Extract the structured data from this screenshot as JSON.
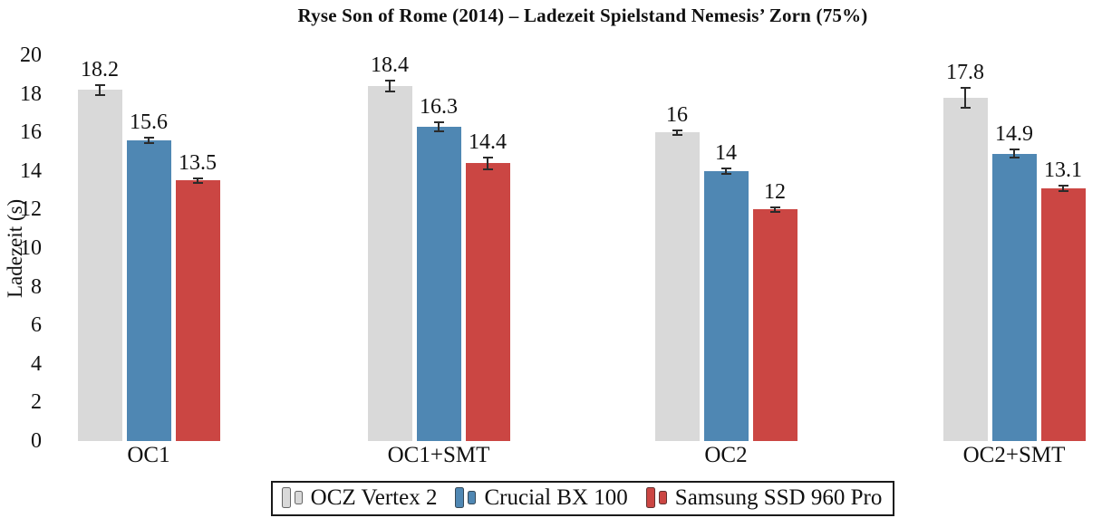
{
  "title": "Ryse Son of Rome (2014) – Ladezeit Spielstand Nemesis’ Zorn (75%)",
  "chart_data": {
    "type": "bar",
    "title": "Ryse Son of Rome (2014) – Ladezeit Spielstand Nemesis’ Zorn (75%)",
    "categories": [
      "OC1",
      "OC1+SMT",
      "OC2",
      "OC2+SMT"
    ],
    "series": [
      {
        "name": "OCZ Vertex 2",
        "color": "#d9d9d9",
        "values": [
          18.2,
          18.4,
          16,
          17.8
        ],
        "errors": [
          0.25,
          0.3,
          0.12,
          0.5
        ]
      },
      {
        "name": "Crucial BX 100",
        "color": "#4f87b3",
        "values": [
          15.6,
          16.3,
          14,
          14.9
        ],
        "errors": [
          0.15,
          0.25,
          0.15,
          0.2
        ]
      },
      {
        "name": "Samsung SSD 960 Pro",
        "color": "#cb4643",
        "values": [
          13.5,
          14.4,
          12,
          13.1
        ],
        "errors": [
          0.1,
          0.3,
          0.12,
          0.15
        ]
      }
    ],
    "xlabel": "",
    "ylabel": "Ladezeit (s)",
    "ylim": [
      0,
      20
    ],
    "yticks": [
      0,
      2,
      4,
      6,
      8,
      10,
      12,
      14,
      16,
      18,
      20
    ],
    "grid": false,
    "value_labels": true,
    "error_bars": true,
    "legend_position": "bottom"
  }
}
